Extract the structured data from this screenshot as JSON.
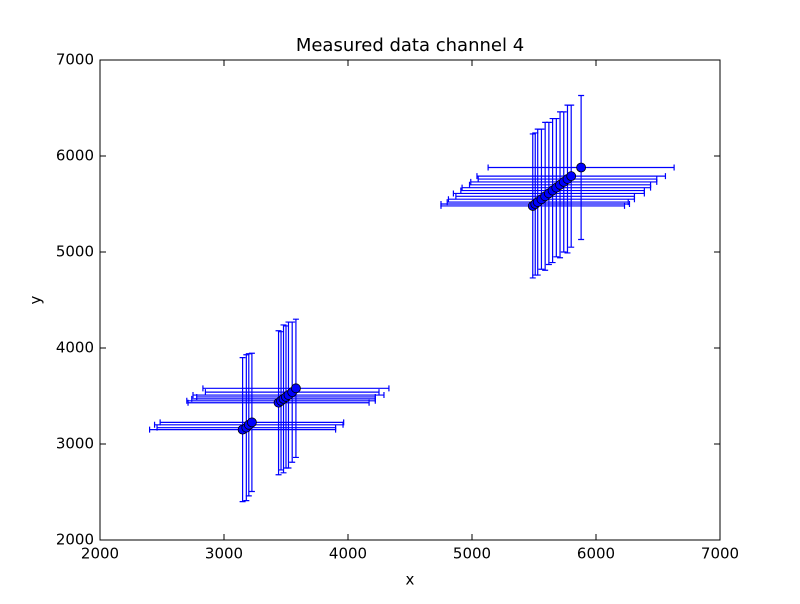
{
  "chart_data": {
    "type": "errorbar-scatter",
    "title": "Measured data channel 4",
    "x_label": "x",
    "y_label": "y",
    "xlim": [
      2000,
      7000
    ],
    "ylim": [
      2000,
      7000
    ],
    "xticks": [
      2000,
      3000,
      4000,
      5000,
      6000,
      7000
    ],
    "yticks": [
      2000,
      3000,
      4000,
      5000,
      6000,
      7000
    ],
    "series": [
      {
        "color": "#0000ff",
        "x": [
          3150,
          3180,
          3200,
          3225,
          3440,
          3460,
          3480,
          3500,
          3520,
          3550,
          3580,
          5490,
          5510,
          5530,
          5560,
          5590,
          5620,
          5650,
          5680,
          5710,
          5740,
          5770,
          5800,
          5880
        ],
        "values": [
          3150,
          3170,
          3200,
          3225,
          3430,
          3450,
          3470,
          3490,
          3510,
          3540,
          3580,
          5480,
          5500,
          5520,
          5550,
          5580,
          5610,
          5640,
          5670,
          5700,
          5730,
          5760,
          5790,
          5880
        ],
        "xerr": [
          750,
          720,
          760,
          740,
          730,
          760,
          740,
          720,
          770,
          700,
          750,
          740,
          760,
          730,
          750,
          720,
          770,
          740,
          760,
          730,
          750,
          720,
          760,
          750
        ],
        "yerr": [
          750,
          760,
          740,
          720,
          750,
          720,
          770,
          740,
          760,
          730,
          720,
          750,
          740,
          760,
          730,
          770,
          740,
          750,
          720,
          760,
          730,
          770,
          740,
          750
        ]
      }
    ]
  }
}
